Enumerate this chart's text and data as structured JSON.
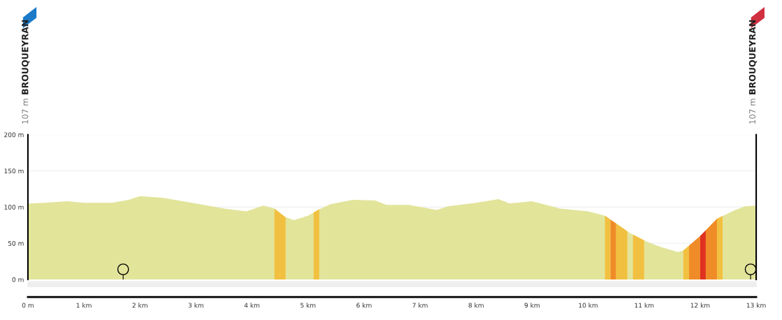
{
  "chart_data": {
    "type": "area",
    "x": [
      0,
      0.3,
      0.7,
      1.0,
      1.5,
      1.8,
      2.0,
      2.4,
      3.0,
      3.5,
      3.9,
      4.2,
      4.4,
      4.6,
      4.75,
      5.0,
      5.2,
      5.4,
      5.8,
      6.2,
      6.4,
      6.8,
      7.3,
      7.5,
      8.0,
      8.4,
      8.6,
      9.0,
      9.5,
      10.0,
      10.3,
      10.75,
      11.05,
      11.3,
      11.6,
      11.7,
      12.0,
      12.3,
      12.6,
      12.8,
      13.0
    ],
    "series": [
      {
        "color": "#e2e49a",
        "values": [
          105,
          106,
          108,
          106,
          106,
          110,
          115,
          113,
          105,
          98,
          94,
          102,
          98,
          86,
          82,
          88,
          97,
          104,
          110,
          109,
          103,
          103,
          96,
          101,
          106,
          111,
          105,
          108,
          98,
          94,
          88,
          64,
          52,
          45,
          38,
          40,
          60,
          84,
          95,
          101,
          102
        ]
      }
    ],
    "bands": [
      {
        "axis": "x",
        "from": 4.4,
        "to": 4.6,
        "color": "#f2c040"
      },
      {
        "axis": "x",
        "from": 5.1,
        "to": 5.2,
        "color": "#f2c040"
      },
      {
        "axis": "x",
        "from": 10.3,
        "to": 10.4,
        "color": "#f2c040"
      },
      {
        "axis": "x",
        "from": 10.4,
        "to": 10.5,
        "color": "#f08c28"
      },
      {
        "axis": "x",
        "from": 10.5,
        "to": 10.7,
        "color": "#f2c040"
      },
      {
        "axis": "x",
        "from": 10.8,
        "to": 11.0,
        "color": "#f2c040"
      },
      {
        "axis": "x",
        "from": 11.7,
        "to": 11.8,
        "color": "#f2c040"
      },
      {
        "axis": "x",
        "from": 11.8,
        "to": 12.0,
        "color": "#f08c28"
      },
      {
        "axis": "x",
        "from": 12.0,
        "to": 12.1,
        "color": "#e03020"
      },
      {
        "axis": "x",
        "from": 12.1,
        "to": 12.3,
        "color": "#f08c28"
      },
      {
        "axis": "x",
        "from": 12.3,
        "to": 12.4,
        "color": "#f2c040"
      }
    ],
    "annotations": [
      "107 m",
      "BROUQUEYRAN",
      "107 m",
      "BROUQUEYRAN"
    ],
    "xlim": [
      0,
      13
    ],
    "xticks": [
      {
        "value": 0,
        "label": "0 m"
      },
      {
        "value": 1,
        "label": "1 km"
      },
      {
        "value": 2,
        "label": "2 km"
      },
      {
        "value": 3,
        "label": "3 km"
      },
      {
        "value": 4,
        "label": "4 km"
      },
      {
        "value": 5,
        "label": "5 km"
      },
      {
        "value": 6,
        "label": "6 km"
      },
      {
        "value": 7,
        "label": "7 km"
      },
      {
        "value": 8,
        "label": "8 km"
      },
      {
        "value": 9,
        "label": "9 km"
      },
      {
        "value": 10,
        "label": "10 km"
      },
      {
        "value": 11,
        "label": "11 km"
      },
      {
        "value": 12,
        "label": "12 km"
      },
      {
        "value": 13,
        "label": "13 km"
      }
    ],
    "ylim": [
      0,
      200
    ],
    "yticks": [
      {
        "value": 0,
        "label": "0 m"
      },
      {
        "value": 50,
        "label": "50 m"
      },
      {
        "value": 100,
        "label": "100 m"
      },
      {
        "value": 150,
        "label": "150 m"
      },
      {
        "value": 200,
        "label": "200 m"
      }
    ],
    "grid": "y"
  }
}
